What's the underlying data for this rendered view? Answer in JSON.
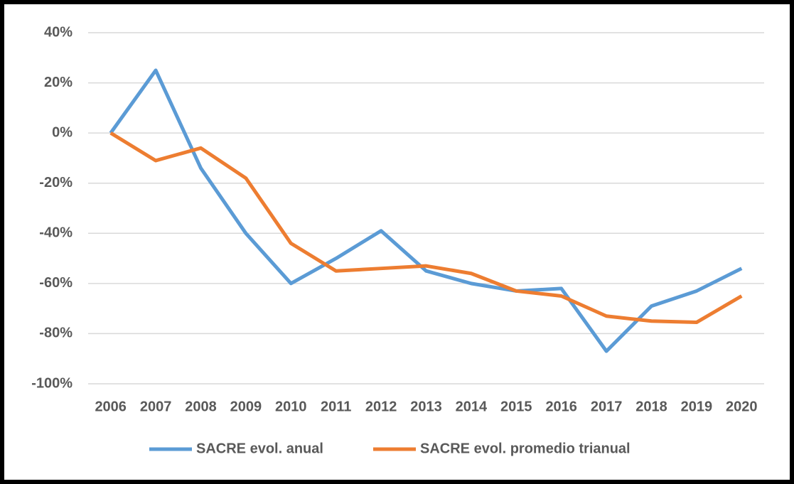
{
  "chart_data": {
    "type": "line",
    "categories": [
      "2006",
      "2007",
      "2008",
      "2009",
      "2010",
      "2011",
      "2012",
      "2013",
      "2014",
      "2015",
      "2016",
      "2017",
      "2018",
      "2019",
      "2020"
    ],
    "series": [
      {
        "name": "SACRE evol. anual",
        "color": "#5b9bd5",
        "values": [
          0,
          25,
          -14,
          -40,
          -60,
          -50,
          -39,
          -55,
          -60,
          -63,
          -62,
          -87,
          -69,
          -63,
          -54
        ]
      },
      {
        "name": "SACRE evol. promedio trianual",
        "color": "#ed7d31",
        "values": [
          0,
          -11,
          -6,
          -18,
          -44,
          -55,
          -54,
          -53,
          -56,
          -63,
          -65,
          -73,
          -75,
          -75.5,
          -65
        ]
      }
    ],
    "ylim": [
      -100,
      40
    ],
    "yticks": [
      {
        "value": -100,
        "label": "-100%"
      },
      {
        "value": -80,
        "label": "-80%"
      },
      {
        "value": -60,
        "label": "-60%"
      },
      {
        "value": -40,
        "label": "-40%"
      },
      {
        "value": -20,
        "label": "-20%"
      },
      {
        "value": 0,
        "label": "0%"
      },
      {
        "value": 20,
        "label": "20%"
      },
      {
        "value": 40,
        "label": "40%"
      }
    ],
    "grid": true,
    "legend": "bottom"
  }
}
